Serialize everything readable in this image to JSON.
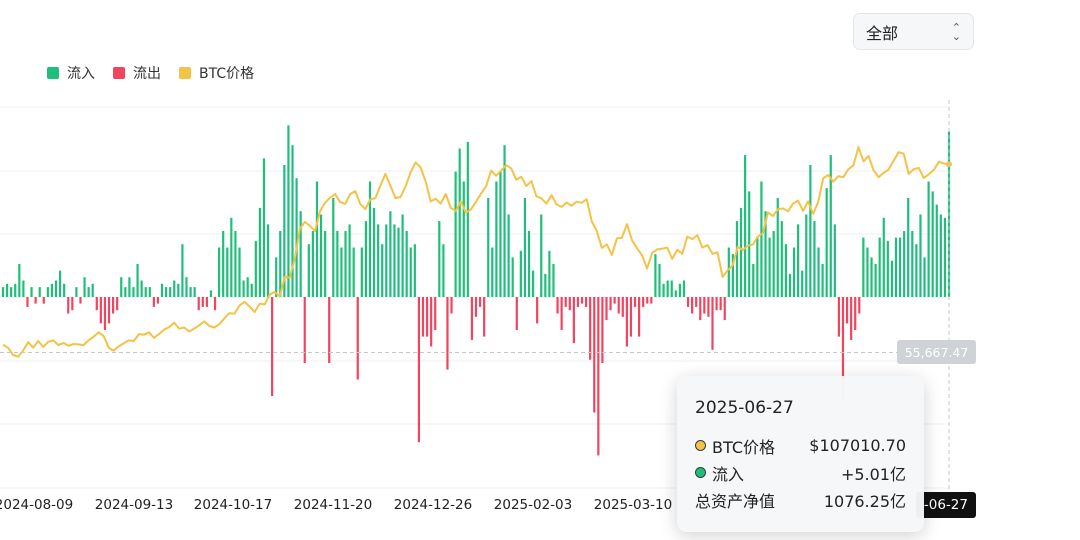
{
  "selector": {
    "value": "全部"
  },
  "legend": [
    {
      "label": "流入",
      "color": "#1fbf7b"
    },
    {
      "label": "流出",
      "color": "#f0445f"
    },
    {
      "label": "BTC价格",
      "color": "#f4c246"
    }
  ],
  "tooltip": {
    "date": "2025-06-27",
    "price_label": "BTC价格",
    "price_value": "$107010.70",
    "flow_label": "流入",
    "flow_value": "+5.01亿",
    "nav_label": "总资产净值",
    "nav_value": "1076.25亿"
  },
  "crosshair": {
    "price_label": "55,667.47",
    "date_label": "-06-27"
  },
  "chart_data": {
    "type": "bar+line",
    "x_tick_labels": [
      "2024-08-09",
      "2024-09-13",
      "2024-10-17",
      "2024-11-20",
      "2024-12-26",
      "2025-02-03",
      "2025-03-10"
    ],
    "flow_series": {
      "name": "流入/流出",
      "unit": "亿",
      "values": [
        0.3,
        0.4,
        0.3,
        0.4,
        1.0,
        0.5,
        -0.3,
        0.3,
        -0.2,
        0.3,
        -0.2,
        0.3,
        0.4,
        0.5,
        0.8,
        0.4,
        -0.5,
        -0.4,
        0.3,
        -0.2,
        0.6,
        0.3,
        0.4,
        -0.4,
        -0.8,
        -1.0,
        -0.8,
        -0.5,
        -0.4,
        0.6,
        0.3,
        0.6,
        0.3,
        1.0,
        0.5,
        0.3,
        0.3,
        -0.3,
        -0.2,
        0.4,
        0.3,
        0.3,
        0.5,
        0.4,
        1.6,
        0.6,
        0.3,
        0.3,
        -0.4,
        -0.3,
        -0.3,
        0.2,
        -0.4,
        1.5,
        2.0,
        1.5,
        2.4,
        2.0,
        1.5,
        0.5,
        0.6,
        0.4,
        1.7,
        2.7,
        4.2,
        2.2,
        -3.0,
        1.2,
        2.0,
        4.0,
        5.2,
        4.6,
        3.6,
        2.6,
        -2.0,
        1.6,
        2.0,
        3.5,
        2.5,
        2.0,
        -2.0,
        3.0,
        2.0,
        1.5,
        2.0,
        2.2,
        1.5,
        -2.5,
        1.5,
        2.3,
        3.5,
        2.7,
        2.2,
        1.6,
        2.2,
        2.6,
        2.2,
        2.1,
        2.5,
        2.0,
        1.5,
        1.6,
        -4.4,
        -1.2,
        -1.2,
        -1.5,
        -1.0,
        2.3,
        1.6,
        -2.2,
        -0.5,
        3.8,
        4.5,
        3.5,
        4.7,
        -1.3,
        -0.6,
        -0.3,
        -1.2,
        3.0,
        1.5,
        3.5,
        3.8,
        4.6,
        2.5,
        1.2,
        -1.0,
        1.4,
        3.0,
        2.0,
        0.8,
        -0.8,
        2.5,
        0.7,
        1.4,
        1.0,
        -0.5,
        -1.0,
        -0.3,
        -0.4,
        -1.4,
        -0.3,
        -0.2,
        -0.3,
        -1.9,
        -3.5,
        -4.8,
        -2.0,
        -0.7,
        -0.4,
        -0.2,
        -0.5,
        -0.6,
        -1.5,
        -1.2,
        -0.3,
        -1.2,
        -0.3,
        -0.2,
        -0.2,
        1.3,
        1.0,
        0.4,
        0.5,
        0.5,
        0.2,
        0.4,
        0.5,
        -0.3,
        -0.5,
        -0.3,
        -0.7,
        -0.5,
        -0.6,
        -1.6,
        -0.4,
        -0.4,
        -0.7,
        1.5,
        1.3,
        2.3,
        2.7,
        4.3,
        3.2,
        1.0,
        1.8,
        3.5,
        2.6,
        1.8,
        2.0,
        3.0,
        2.3,
        1.6,
        0.7,
        1.5,
        2.2,
        0.8,
        2.5,
        4.0,
        2.3,
        1.5,
        1.0,
        3.3,
        4.3,
        2.2,
        -1.2,
        -3.1,
        -0.8,
        -1.3,
        -1.0,
        -0.5,
        1.8,
        1.5,
        1.2,
        1.0,
        1.8,
        2.4,
        1.7,
        1.1,
        1.8,
        1.8,
        2.0,
        3.0,
        2.0,
        1.6,
        2.5,
        1.2,
        3.5,
        3.2,
        2.8,
        2.5,
        2.4,
        5.01
      ]
    },
    "price_series": {
      "name": "BTC价格",
      "unit": "USD",
      "values": [
        57800,
        57000,
        55000,
        54500,
        56200,
        58500,
        57000,
        58800,
        57200,
        58600,
        59000,
        57700,
        58300,
        57500,
        58000,
        57900,
        57700,
        59000,
        60000,
        61200,
        60200,
        57000,
        56200,
        57400,
        58200,
        59000,
        58800,
        60700,
        60500,
        61200,
        59700,
        60700,
        61900,
        62600,
        63800,
        62200,
        62500,
        61400,
        62200,
        63100,
        64200,
        62900,
        62500,
        63400,
        65000,
        66400,
        66300,
        68500,
        69500,
        68200,
        66700,
        69000,
        68800,
        71500,
        72200,
        71000,
        76300,
        76100,
        81400,
        89500,
        91300,
        90200,
        88800,
        94200,
        96500,
        97900,
        98900,
        96700,
        96200,
        98900,
        99700,
        96200,
        94800,
        97400,
        97800,
        101200,
        104400,
        101100,
        97800,
        98100,
        101000,
        104800,
        107500,
        106200,
        102300,
        96900,
        97600,
        96300,
        98900,
        95100,
        94300,
        96900,
        93800,
        94700,
        96800,
        99000,
        101000,
        105300,
        103900,
        105300,
        106800,
        105900,
        102800,
        103600,
        101100,
        102400,
        98300,
        97700,
        96300,
        98600,
        96100,
        95400,
        96600,
        95700,
        96800,
        96500,
        97500,
        91500,
        88800,
        84200,
        85200,
        82300,
        86800,
        87000,
        90700,
        86300,
        84100,
        82200,
        78600,
        82800,
        83800,
        84000,
        84300,
        81200,
        83700,
        82600,
        87300,
        86600,
        87700,
        84300,
        85000,
        82600,
        83000,
        76300,
        78100,
        79400,
        84500,
        83600,
        84800,
        85100,
        87300,
        88200,
        93900,
        92900,
        94700,
        95000,
        94200,
        96300,
        97100,
        94300,
        96900,
        93500,
        96700,
        103200,
        104100,
        102300,
        103800,
        103500,
        105700,
        106700,
        111700,
        107800,
        109300,
        105400,
        103500,
        104700,
        105600,
        108000,
        110300,
        109900,
        104400,
        105700,
        106000,
        103300,
        104300,
        105500,
        107700,
        107200,
        107010.7
      ]
    },
    "y_reference": 55667.47
  }
}
